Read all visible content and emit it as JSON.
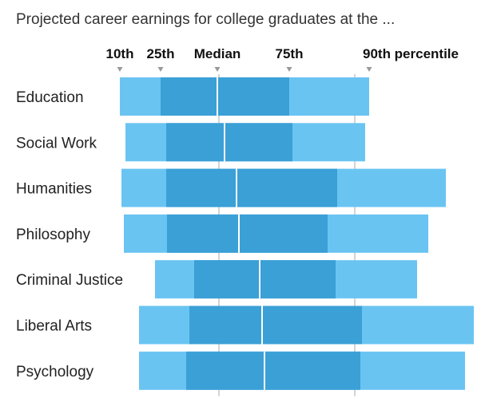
{
  "title": "Projected career earnings for college graduates at the ...",
  "chart_data": {
    "type": "bar",
    "title": "Projected career earnings for college graduates at the ...",
    "percentile_labels": [
      "10th",
      "25th",
      "Median",
      "75th",
      "90th percentile"
    ],
    "categories": [
      "Education",
      "Social Work",
      "Humanities",
      "Philosophy",
      "Criminal Justice",
      "Liberal Arts",
      "Psychology"
    ],
    "series": [
      {
        "name": "10th",
        "values": [
          150,
          157,
          152,
          155,
          194,
          174,
          174
        ]
      },
      {
        "name": "25th",
        "values": [
          201,
          208,
          208,
          209,
          243,
          237,
          233
        ]
      },
      {
        "name": "Median",
        "values": [
          272,
          281,
          296,
          299,
          325,
          328,
          331
        ]
      },
      {
        "name": "75th",
        "values": [
          362,
          366,
          422,
          410,
          420,
          453,
          451
        ]
      },
      {
        "name": "90th percentile",
        "values": [
          462,
          457,
          558,
          536,
          522,
          593,
          582
        ]
      }
    ],
    "reference_values": [
      274,
      444
    ],
    "grid": false,
    "legend": "top"
  },
  "colors": {
    "outer": "#6ac4f2",
    "inner": "#3aa0d6",
    "median_line": "#ffffff",
    "guide": "#aaaaaa",
    "marker": "#999999",
    "text": "#222222"
  }
}
